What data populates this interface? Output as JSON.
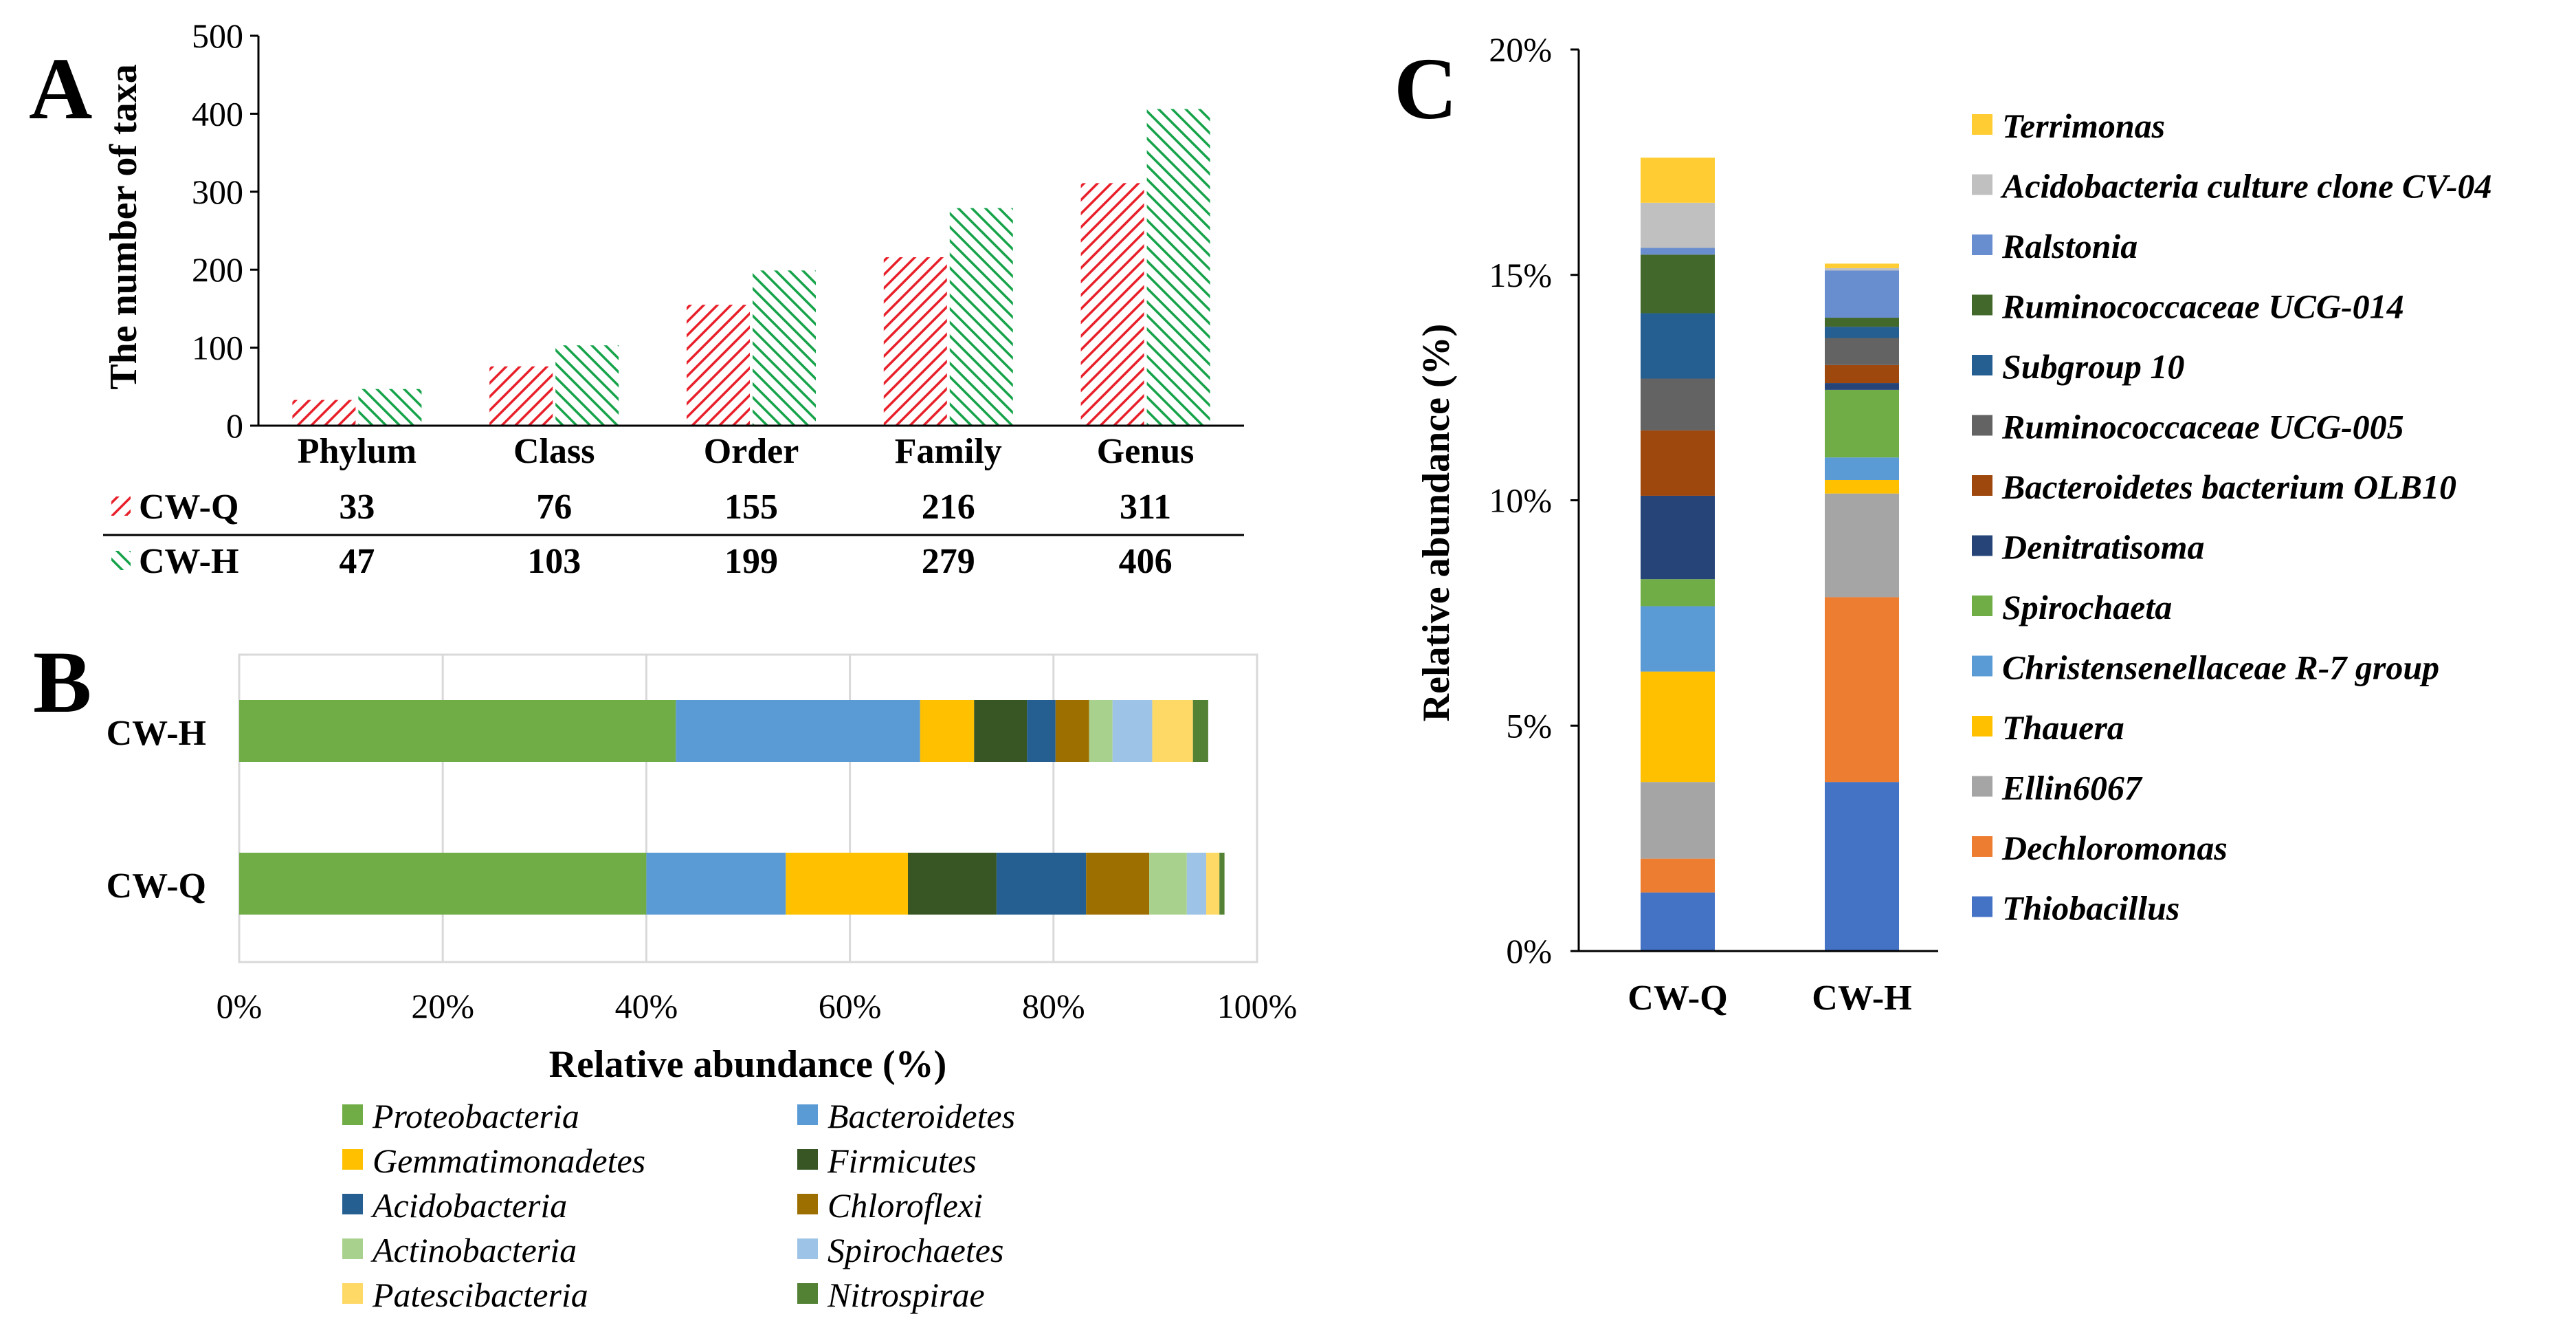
{
  "colors": {
    "cwq_hatch": "#e8202a",
    "cwh_hatch": "#16a34a",
    "axis": "#000000",
    "grid": "#d9d9d9"
  },
  "panel_labels": {
    "a": "A",
    "b": "B",
    "c": "C"
  },
  "chart_data": [
    {
      "type": "bar",
      "panel": "A",
      "ylabel": "The number of taxa",
      "ylim": [
        0,
        500
      ],
      "yticks": [
        "0",
        "100",
        "200",
        "300",
        "400",
        "500"
      ],
      "categories": [
        "Phylum",
        "Class",
        "Order",
        "Family",
        "Genus"
      ],
      "series": [
        {
          "name": "CW-Q",
          "values": [
            33,
            76,
            155,
            216,
            311
          ],
          "labels": [
            "33",
            "76",
            "155",
            "216",
            "311"
          ],
          "color": "#e8202a"
        },
        {
          "name": "CW-H",
          "values": [
            47,
            103,
            199,
            279,
            406
          ],
          "labels": [
            "47",
            "103",
            "199",
            "279",
            "406"
          ],
          "color": "#16a34a"
        }
      ],
      "data_table": true,
      "grid": false
    },
    {
      "type": "bar",
      "orientation": "horizontal-stacked",
      "panel": "B",
      "xlabel": "Relative abundance (%)",
      "xlim": [
        0,
        100
      ],
      "xticks": [
        "0%",
        "20%",
        "40%",
        "60%",
        "80%",
        "100%"
      ],
      "categories": [
        "CW-H",
        "CW-Q"
      ],
      "grid": true,
      "legend_position": "bottom",
      "series": [
        {
          "name": "Proteobacteria",
          "color": "#70ad47",
          "values": [
            42.9,
            40.0
          ]
        },
        {
          "name": "Bacteroidetes",
          "color": "#5b9bd5",
          "values": [
            24.0,
            13.7
          ]
        },
        {
          "name": "Gemmatimonadetes",
          "color": "#ffc000",
          "values": [
            5.3,
            12.0
          ]
        },
        {
          "name": "Firmicutes",
          "color": "#375623",
          "values": [
            5.2,
            8.7
          ]
        },
        {
          "name": "Acidobacteria",
          "color": "#255e91",
          "values": [
            2.8,
            8.8
          ]
        },
        {
          "name": "Chloroflexi",
          "color": "#9c6f00",
          "values": [
            3.3,
            6.2
          ]
        },
        {
          "name": "Actinobacteria",
          "color": "#a9d18e",
          "values": [
            2.3,
            3.7
          ]
        },
        {
          "name": "Spirochaetes",
          "color": "#9dc3e6",
          "values": [
            3.9,
            1.9
          ]
        },
        {
          "name": "Patescibacteria",
          "color": "#ffd966",
          "values": [
            4.0,
            1.3
          ]
        },
        {
          "name": "Nitrospirae",
          "color": "#548235",
          "values": [
            1.5,
            0.5
          ]
        }
      ]
    },
    {
      "type": "bar",
      "orientation": "vertical-stacked",
      "panel": "C",
      "ylabel": "Relative abundance (%)",
      "ylim": [
        0,
        20
      ],
      "yticks": [
        "0%",
        "5%",
        "10%",
        "15%",
        "20%"
      ],
      "categories": [
        "CW-Q",
        "CW-H"
      ],
      "grid": false,
      "legend_position": "right",
      "series": [
        {
          "name": "Thiobacillus",
          "color": "#4472c4",
          "values": [
            1.3,
            3.75
          ]
        },
        {
          "name": "Dechloromonas",
          "color": "#ed7d31",
          "values": [
            0.75,
            4.1
          ]
        },
        {
          "name": "Ellin6067",
          "color": "#a5a5a5",
          "values": [
            1.7,
            2.3
          ]
        },
        {
          "name": "Thauera",
          "color": "#ffc000",
          "values": [
            2.45,
            0.3
          ]
        },
        {
          "name": "Christensenellaceae R-7 group",
          "color": "#5b9bd5",
          "values": [
            1.45,
            0.5
          ]
        },
        {
          "name": "Spirochaeta",
          "color": "#70ad47",
          "values": [
            0.6,
            1.5
          ]
        },
        {
          "name": "Denitratisoma",
          "color": "#264478",
          "values": [
            1.85,
            0.15
          ]
        },
        {
          "name": "Bacteroidetes bacterium OLB10",
          "color": "#9e480e",
          "values": [
            1.45,
            0.4
          ]
        },
        {
          "name": "Ruminococcaceae UCG-005",
          "color": "#636363",
          "values": [
            1.15,
            0.6
          ]
        },
        {
          "name": "Subgroup 10",
          "color": "#255e91",
          "values": [
            1.45,
            0.25
          ]
        },
        {
          "name": "Ruminococcaceae UCG-014",
          "color": "#43682b",
          "values": [
            1.3,
            0.2
          ]
        },
        {
          "name": "Ralstonia",
          "color": "#698ed0",
          "values": [
            0.15,
            1.05
          ]
        },
        {
          "name": "Acidobacteria culture clone CV-04",
          "color": "#c0c0c0",
          "values": [
            1.0,
            0.05
          ]
        },
        {
          "name": "Terrimonas",
          "color": "#ffcd33",
          "values": [
            1.0,
            0.1
          ]
        }
      ]
    }
  ]
}
